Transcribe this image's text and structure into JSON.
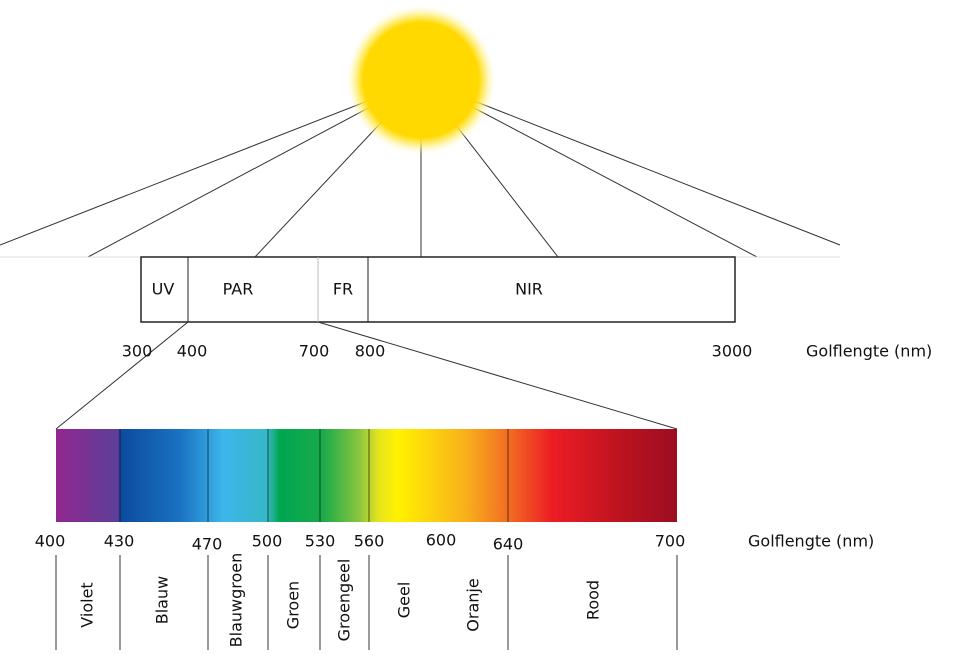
{
  "bands": [
    "UV",
    "PAR",
    "FR",
    "NIR"
  ],
  "band_ticks": [
    300,
    400,
    700,
    800,
    3000
  ],
  "band_axis_label": "Golflengte (nm)",
  "color_ticks": [
    400,
    430,
    470,
    500,
    530,
    560,
    600,
    640,
    700
  ],
  "color_axis_label": "Golflengte (nm)",
  "colors": [
    "Violet",
    "Blauw",
    "Blauwgroen",
    "Groen",
    "Groengeel",
    "Geel",
    "Oranje",
    "Rood"
  ]
}
